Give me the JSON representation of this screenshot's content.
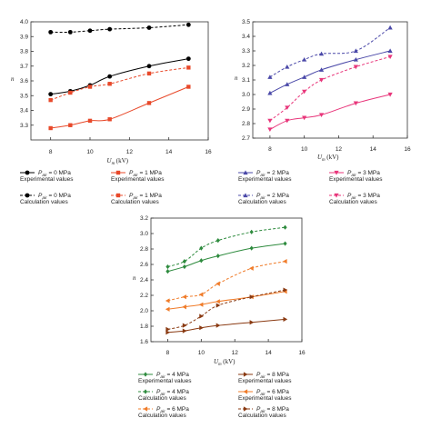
{
  "chart_data": [
    {
      "type": "line",
      "ylabel": "n",
      "xlabel": "U_m (kV)",
      "xlabel_main": "U",
      "xlabel_sub": "m",
      "xlabel_unit": " (kV)",
      "xlim": [
        7,
        16
      ],
      "ylim": [
        3.2,
        4.0
      ],
      "xticks": [
        8,
        10,
        12,
        14,
        16
      ],
      "yticks": [
        3.3,
        3.4,
        3.5,
        3.6,
        3.7,
        3.8,
        3.9,
        4.0
      ],
      "yticks_labels": [
        "3.3",
        "3.4",
        "3.5",
        "3.6",
        "3.7",
        "3.8",
        "3.9",
        "4.0"
      ],
      "x": [
        8,
        9,
        10,
        11,
        13,
        15
      ],
      "series": [
        {
          "name": "P_air = 0 MPa Experimental values",
          "label_main": "P",
          "label_sub": "air",
          "label_value": " = 0 MPa",
          "label_kind": "Experimental values",
          "color": "#000000",
          "marker": "circle",
          "dash": false,
          "values": [
            3.51,
            3.53,
            3.57,
            3.63,
            3.7,
            3.75
          ]
        },
        {
          "name": "P_air = 0 MPa Calculation values",
          "label_main": "P",
          "label_sub": "air",
          "label_value": " = 0 MPa",
          "label_kind": "Calculation values",
          "color": "#000000",
          "marker": "circle",
          "dash": true,
          "values": [
            3.93,
            3.93,
            3.94,
            3.95,
            3.96,
            3.98
          ]
        },
        {
          "name": "P_air = 1 MPa Experimental values",
          "label_main": "P",
          "label_sub": "air",
          "label_value": " = 1 MPa",
          "label_kind": "Experimental values",
          "color": "#e8492a",
          "marker": "square",
          "dash": false,
          "values": [
            3.28,
            3.3,
            3.33,
            3.34,
            3.45,
            3.56
          ]
        },
        {
          "name": "P_air = 1 MPa Calculation values",
          "label_main": "P",
          "label_sub": "air",
          "label_value": " = 1 MPa",
          "label_kind": "Calculation values",
          "color": "#e8492a",
          "marker": "square",
          "dash": true,
          "values": [
            3.47,
            3.52,
            3.56,
            3.58,
            3.65,
            3.69
          ]
        }
      ]
    },
    {
      "type": "line",
      "ylabel": "n",
      "xlabel": "U_m (kV)",
      "xlabel_main": "U",
      "xlabel_sub": "m",
      "xlabel_unit": " (kV)",
      "xlim": [
        7,
        16
      ],
      "ylim": [
        2.7,
        3.5
      ],
      "xticks": [
        8,
        10,
        12,
        14,
        16
      ],
      "yticks": [
        2.7,
        2.8,
        2.9,
        3.0,
        3.1,
        3.2,
        3.3,
        3.4,
        3.5
      ],
      "yticks_labels": [
        "2.7",
        "2.8",
        "2.9",
        "3.0",
        "3.1",
        "3.2",
        "3.3",
        "3.4",
        "3.5"
      ],
      "x": [
        8,
        9,
        10,
        11,
        13,
        15
      ],
      "series": [
        {
          "name": "P_air = 2 MPa Experimental values",
          "label_main": "P",
          "label_sub": "air",
          "label_value": " = 2 MPa",
          "label_kind": "Experimental values",
          "color": "#4a48a8",
          "marker": "triangle",
          "dash": false,
          "values": [
            3.01,
            3.07,
            3.12,
            3.17,
            3.24,
            3.3
          ]
        },
        {
          "name": "P_air = 2 MPa Calculation values",
          "label_main": "P",
          "label_sub": "air",
          "label_value": " = 2 MPa",
          "label_kind": "Calculation values",
          "color": "#4a48a8",
          "marker": "triangle",
          "dash": true,
          "values": [
            3.12,
            3.19,
            3.24,
            3.28,
            3.3,
            3.46
          ]
        },
        {
          "name": "P_air = 3 MPa Experimental values",
          "label_main": "P",
          "label_sub": "air",
          "label_value": " = 3 MPa",
          "label_kind": "Experimental values",
          "color": "#e8357a",
          "marker": "triangle-down",
          "dash": false,
          "values": [
            2.76,
            2.82,
            2.84,
            2.86,
            2.94,
            3.0
          ]
        },
        {
          "name": "P_air = 3 MPa Calculation values",
          "label_main": "P",
          "label_sub": "air",
          "label_value": " = 3 MPa",
          "label_kind": "Calculation values",
          "color": "#e8357a",
          "marker": "triangle-down",
          "dash": true,
          "values": [
            2.82,
            2.91,
            3.02,
            3.1,
            3.19,
            3.26
          ]
        }
      ]
    },
    {
      "type": "line",
      "ylabel": "n",
      "xlabel": "U_m (kV)",
      "xlabel_main": "U",
      "xlabel_sub": "m",
      "xlabel_unit": " (kV)",
      "xlim": [
        7,
        16
      ],
      "ylim": [
        1.6,
        3.2
      ],
      "xticks": [
        8,
        10,
        12,
        14,
        16
      ],
      "yticks": [
        1.6,
        1.8,
        2.0,
        2.2,
        2.4,
        2.6,
        2.8,
        3.0,
        3.2
      ],
      "yticks_labels": [
        "1.6",
        "1.8",
        "2.0",
        "2.2",
        "2.4",
        "2.6",
        "2.8",
        "3.0",
        "3.2"
      ],
      "x": [
        8,
        9,
        10,
        11,
        13,
        15
      ],
      "series": [
        {
          "name": "P_air = 4 MPa Experimental values",
          "label_main": "P",
          "label_sub": "air",
          "label_value": " = 4 MPa",
          "label_kind": "Experimental values",
          "color": "#2e8b3e",
          "marker": "diamond",
          "dash": false,
          "values": [
            2.51,
            2.57,
            2.65,
            2.71,
            2.81,
            2.87
          ]
        },
        {
          "name": "P_air = 4 MPa Calculation values",
          "label_main": "P",
          "label_sub": "air",
          "label_value": " = 4 MPa",
          "label_kind": "Calculation values",
          "color": "#2e8b3e",
          "marker": "diamond",
          "dash": true,
          "values": [
            2.57,
            2.64,
            2.81,
            2.91,
            3.02,
            3.08
          ]
        },
        {
          "name": "P_air = 6 MPa Experimental values",
          "label_main": "P",
          "label_sub": "air",
          "label_value": " = 6 MPa",
          "label_kind": "Experimental values",
          "color": "#f07c2a",
          "marker": "triangle-left",
          "dash": false,
          "values": [
            2.02,
            2.05,
            2.08,
            2.12,
            2.18,
            2.25
          ]
        },
        {
          "name": "P_air = 6 MPa Calculation values",
          "label_main": "P",
          "label_sub": "air",
          "label_value": " = 6 MPa",
          "label_kind": "Calculation values",
          "color": "#f07c2a",
          "marker": "triangle-left",
          "dash": true,
          "values": [
            2.13,
            2.18,
            2.21,
            2.35,
            2.55,
            2.64
          ]
        },
        {
          "name": "P_air = 8 MPa Experimental values",
          "label_main": "P",
          "label_sub": "air",
          "label_value": " = 8 MPa",
          "label_kind": "Experimental values",
          "color": "#8a3a12",
          "marker": "triangle-right",
          "dash": false,
          "values": [
            1.72,
            1.74,
            1.78,
            1.81,
            1.85,
            1.89
          ]
        },
        {
          "name": "P_air = 8 MPa Calculation values",
          "label_main": "P",
          "label_sub": "air",
          "label_value": " = 8 MPa",
          "label_kind": "Calculation values",
          "color": "#8a3a12",
          "marker": "triangle-right",
          "dash": true,
          "values": [
            1.76,
            1.81,
            1.93,
            2.07,
            2.18,
            2.27
          ]
        }
      ]
    }
  ]
}
